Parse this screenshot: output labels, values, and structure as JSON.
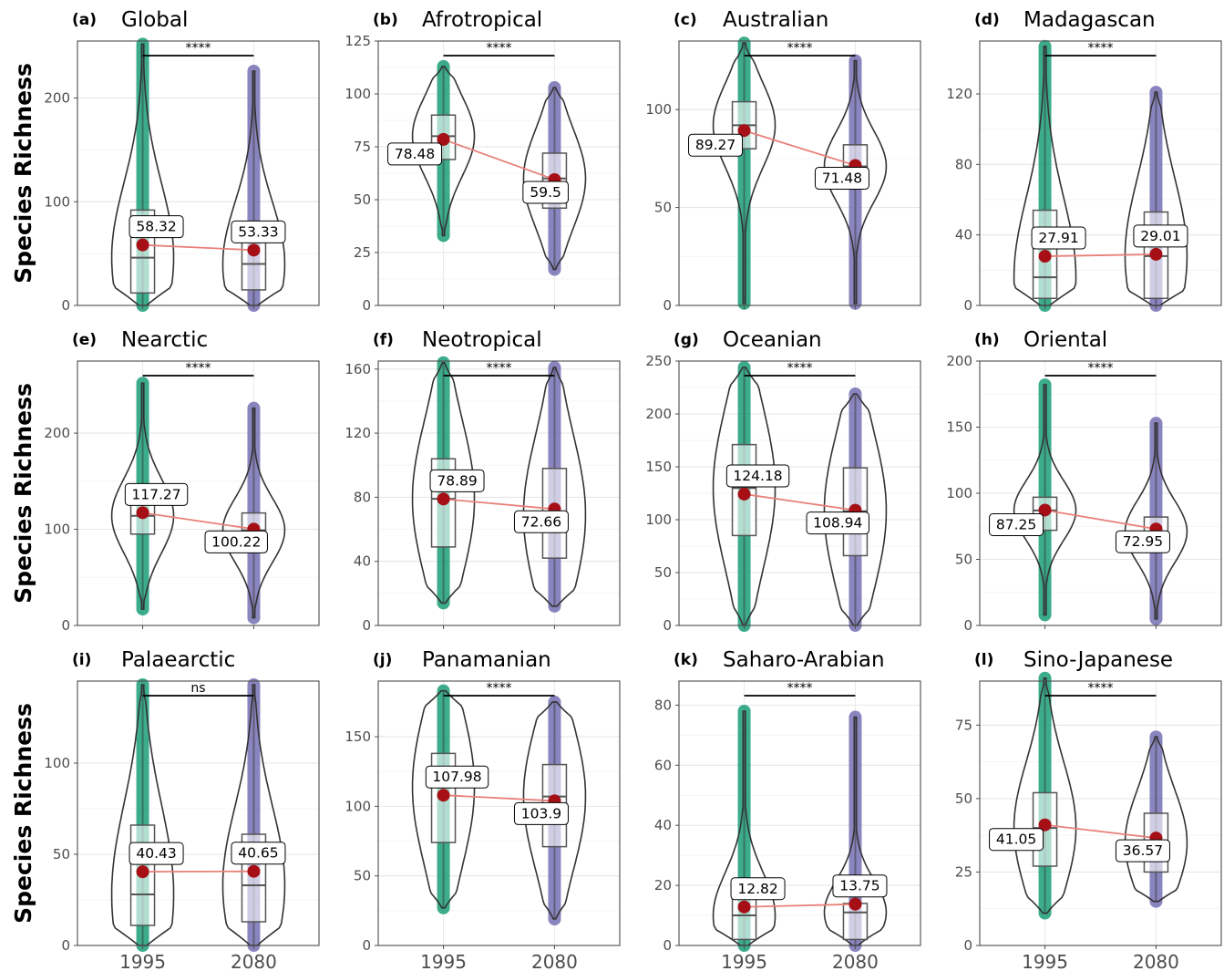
{
  "y_axis_title": "Species Richness",
  "colors": {
    "group_1995": "#1b9e77",
    "group_2080": "#7570b3",
    "mean_point": "#a50f15",
    "mean_line": "#e8807a",
    "panel_border": "#4d4d4d"
  },
  "chart_data": [
    {
      "type": "violin",
      "tag": "(a)",
      "title": "Global",
      "categories": [
        "1995",
        "2080"
      ],
      "ylim": [
        0,
        255
      ],
      "yticks": [
        0,
        100,
        200
      ],
      "significance": "****",
      "means": [
        58.32,
        53.33
      ],
      "series": [
        {
          "name": "1995",
          "min": 0,
          "q1": 12,
          "median": 46,
          "q3": 92,
          "max": 252
        },
        {
          "name": "2080",
          "min": 0,
          "q1": 15,
          "median": 40,
          "q3": 81,
          "max": 226
        }
      ]
    },
    {
      "type": "violin",
      "tag": "(b)",
      "title": "Afrotropical",
      "categories": [
        "1995",
        "2080"
      ],
      "ylim": [
        0,
        125
      ],
      "yticks": [
        0,
        25,
        50,
        75,
        100,
        125
      ],
      "significance": "****",
      "means": [
        78.48,
        59.5
      ],
      "series": [
        {
          "name": "1995",
          "min": 33,
          "q1": 69,
          "median": 80,
          "q3": 90,
          "max": 113
        },
        {
          "name": "2080",
          "min": 17,
          "q1": 46,
          "median": 60,
          "q3": 72,
          "max": 103
        }
      ]
    },
    {
      "type": "violin",
      "tag": "(c)",
      "title": "Australian",
      "categories": [
        "1995",
        "2080"
      ],
      "ylim": [
        0,
        135
      ],
      "yticks": [
        0,
        50,
        100
      ],
      "significance": "****",
      "means": [
        89.27,
        71.48
      ],
      "series": [
        {
          "name": "1995",
          "min": 1,
          "q1": 80,
          "median": 92,
          "q3": 104,
          "max": 134
        },
        {
          "name": "2080",
          "min": 1,
          "q1": 62,
          "median": 71,
          "q3": 82,
          "max": 125
        }
      ]
    },
    {
      "type": "violin",
      "tag": "(d)",
      "title": "Madagascan",
      "categories": [
        "1995",
        "2080"
      ],
      "ylim": [
        0,
        150
      ],
      "yticks": [
        0,
        40,
        80,
        120
      ],
      "significance": "****",
      "means": [
        27.91,
        29.01
      ],
      "series": [
        {
          "name": "1995",
          "min": 0,
          "q1": 4,
          "median": 16,
          "q3": 54,
          "max": 147
        },
        {
          "name": "2080",
          "min": 0,
          "q1": 4,
          "median": 28,
          "q3": 53,
          "max": 121
        }
      ]
    },
    {
      "type": "violin",
      "tag": "(e)",
      "title": "Nearctic",
      "categories": [
        "1995",
        "2080"
      ],
      "ylim": [
        0,
        275
      ],
      "yticks": [
        0,
        100,
        200
      ],
      "significance": "****",
      "means": [
        117.27,
        100.22
      ],
      "series": [
        {
          "name": "1995",
          "min": 17,
          "q1": 95,
          "median": 114,
          "q3": 138,
          "max": 252
        },
        {
          "name": "2080",
          "min": 8,
          "q1": 80,
          "median": 99,
          "q3": 117,
          "max": 226
        }
      ]
    },
    {
      "type": "violin",
      "tag": "(f)",
      "title": "Neotropical",
      "categories": [
        "1995",
        "2080"
      ],
      "ylim": [
        0,
        165
      ],
      "yticks": [
        0,
        40,
        80,
        120,
        160
      ],
      "significance": "****",
      "means": [
        78.89,
        72.66
      ],
      "series": [
        {
          "name": "1995",
          "min": 14,
          "q1": 49,
          "median": 79,
          "q3": 104,
          "max": 164
        },
        {
          "name": "2080",
          "min": 12,
          "q1": 42,
          "median": 69,
          "q3": 98,
          "max": 161
        }
      ]
    },
    {
      "type": "violin",
      "tag": "(g)",
      "title": "Oceanian",
      "categories": [
        "1995",
        "2080"
      ],
      "ylim": [
        0,
        250
      ],
      "yticks": [
        0,
        50,
        100,
        150,
        200,
        250
      ],
      "significance": "****",
      "means": [
        124.18,
        108.94
      ],
      "series": [
        {
          "name": "1995",
          "min": 0,
          "q1": 85,
          "median": 130,
          "q3": 171,
          "max": 244
        },
        {
          "name": "2080",
          "min": 0,
          "q1": 66,
          "median": 108,
          "q3": 149,
          "max": 219
        }
      ]
    },
    {
      "type": "violin",
      "tag": "(h)",
      "title": "Oriental",
      "categories": [
        "1995",
        "2080"
      ],
      "ylim": [
        0,
        200
      ],
      "yticks": [
        0,
        50,
        100,
        150,
        200
      ],
      "significance": "****",
      "means": [
        87.25,
        72.95
      ],
      "series": [
        {
          "name": "1995",
          "min": 8,
          "q1": 72,
          "median": 87,
          "q3": 97,
          "max": 182
        },
        {
          "name": "2080",
          "min": 5,
          "q1": 56,
          "median": 71,
          "q3": 82,
          "max": 153
        }
      ]
    },
    {
      "type": "violin",
      "tag": "(i)",
      "title": "Palaearctic",
      "categories": [
        "1995",
        "2080"
      ],
      "ylim": [
        0,
        145
      ],
      "yticks": [
        0,
        50,
        100
      ],
      "significance": "ns",
      "means": [
        40.43,
        40.65
      ],
      "series": [
        {
          "name": "1995",
          "min": 0,
          "q1": 11,
          "median": 28,
          "q3": 66,
          "max": 143
        },
        {
          "name": "2080",
          "min": 0,
          "q1": 13,
          "median": 33,
          "q3": 61,
          "max": 143
        }
      ]
    },
    {
      "type": "violin",
      "tag": "(j)",
      "title": "Panamanian",
      "categories": [
        "1995",
        "2080"
      ],
      "ylim": [
        0,
        190
      ],
      "yticks": [
        0,
        50,
        100,
        150
      ],
      "significance": "****",
      "means": [
        107.98,
        103.9
      ],
      "series": [
        {
          "name": "1995",
          "min": 27,
          "q1": 74,
          "median": 114,
          "q3": 138,
          "max": 183
        },
        {
          "name": "2080",
          "min": 19,
          "q1": 71,
          "median": 107,
          "q3": 130,
          "max": 175
        }
      ]
    },
    {
      "type": "violin",
      "tag": "(k)",
      "title": "Saharo-Arabian",
      "categories": [
        "1995",
        "2080"
      ],
      "ylim": [
        0,
        88
      ],
      "yticks": [
        0,
        20,
        40,
        60,
        80
      ],
      "significance": "****",
      "means": [
        12.82,
        13.75
      ],
      "series": [
        {
          "name": "1995",
          "min": 0,
          "q1": 2,
          "median": 10,
          "q3": 18,
          "max": 78
        },
        {
          "name": "2080",
          "min": 0,
          "q1": 2,
          "median": 11,
          "q3": 14,
          "max": 76
        }
      ]
    },
    {
      "type": "violin",
      "tag": "(l)",
      "title": "Sino-Japanese",
      "categories": [
        "1995",
        "2080"
      ],
      "ylim": [
        0,
        90
      ],
      "yticks": [
        0,
        25,
        50,
        75
      ],
      "significance": "****",
      "means": [
        41.05,
        36.57
      ],
      "series": [
        {
          "name": "1995",
          "min": 11,
          "q1": 27,
          "median": 40,
          "q3": 52,
          "max": 91
        },
        {
          "name": "2080",
          "min": 15,
          "q1": 25,
          "median": 35,
          "q3": 45,
          "max": 71
        }
      ]
    }
  ]
}
